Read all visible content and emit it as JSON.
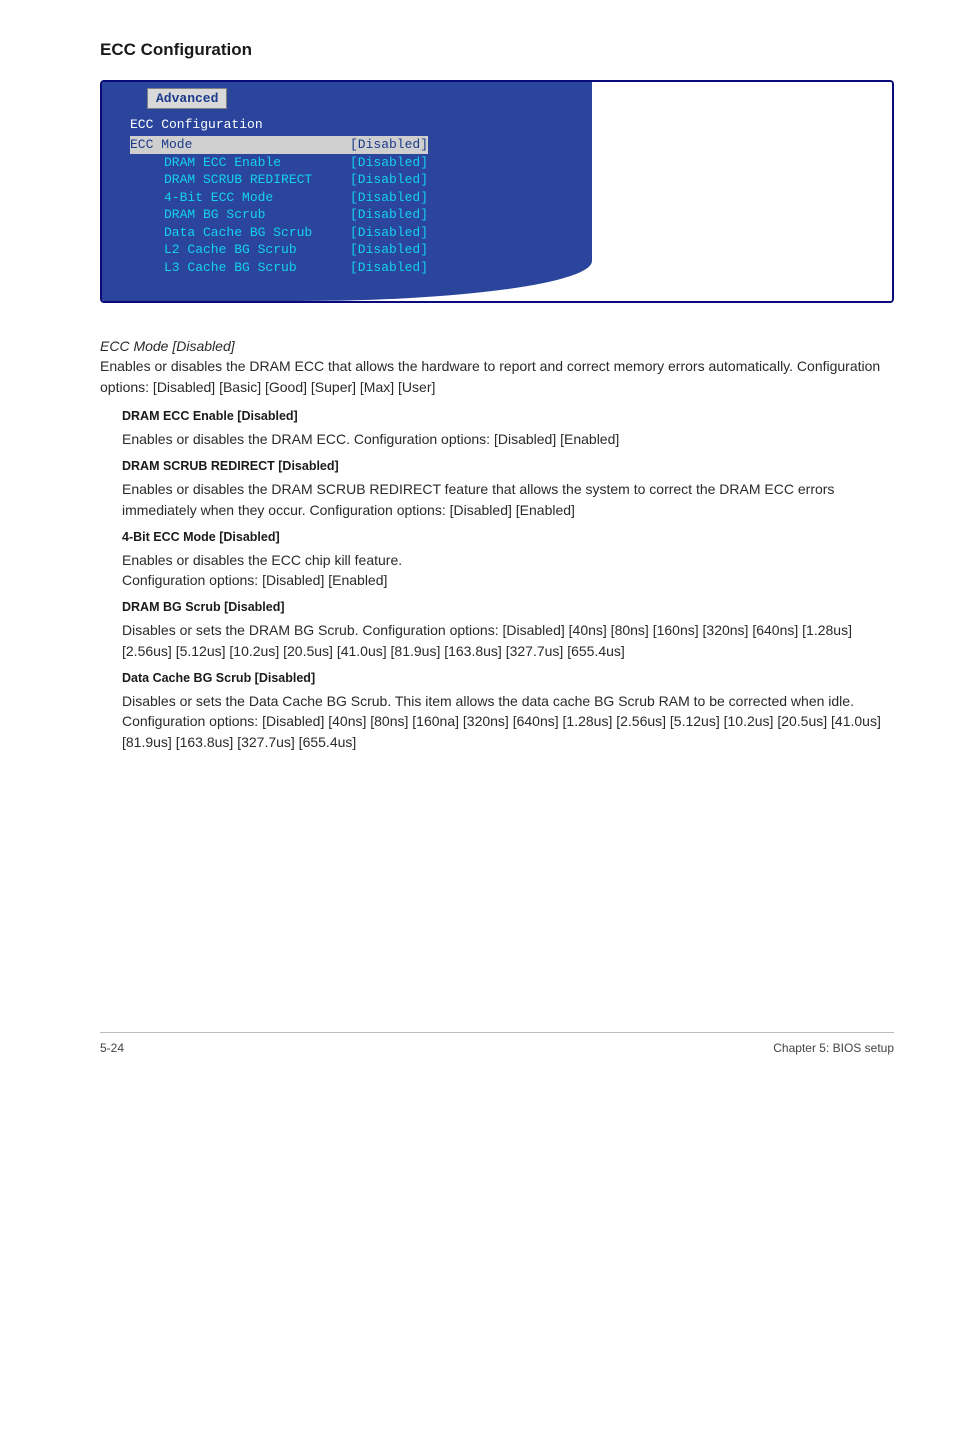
{
  "page": {
    "heading": "ECC Configuration",
    "footer_left": "5-24",
    "footer_right": "Chapter 5: BIOS setup"
  },
  "bios": {
    "tab": "Advanced",
    "title": "ECC Configuration",
    "rows": [
      {
        "label": "ECC Mode",
        "value": "[Disabled]",
        "selected": true,
        "indent": false
      },
      {
        "label": "DRAM ECC Enable",
        "value": "[Disabled]",
        "selected": false,
        "indent": true
      },
      {
        "label": "DRAM SCRUB REDIRECT",
        "value": "[Disabled]",
        "selected": false,
        "indent": true
      },
      {
        "label": "4-Bit ECC Mode",
        "value": "[Disabled]",
        "selected": false,
        "indent": true
      },
      {
        "label": "DRAM BG Scrub",
        "value": "[Disabled]",
        "selected": false,
        "indent": true
      },
      {
        "label": "Data Cache BG Scrub",
        "value": "[Disabled]",
        "selected": false,
        "indent": true
      },
      {
        "label": "L2 Cache BG Scrub",
        "value": "[Disabled]",
        "selected": false,
        "indent": true
      },
      {
        "label": "L3 Cache BG Scrub",
        "value": "[Disabled]",
        "selected": false,
        "indent": true
      }
    ]
  },
  "content": {
    "ecc_mode_head": "ECC Mode [Disabled]",
    "ecc_mode_body": "Enables or disables the DRAM ECC that allows the hardware to report and correct memory errors automatically. Configuration options: [Disabled] [Basic] [Good] [Super] [Max] [User]",
    "sections": [
      {
        "head": "DRAM ECC Enable [Disabled]",
        "body": "Enables or disables the DRAM ECC. Configuration options: [Disabled] [Enabled]"
      },
      {
        "head": "DRAM SCRUB REDIRECT [Disabled]",
        "body": "Enables or disables the DRAM SCRUB REDIRECT feature that allows the system to correct the DRAM ECC errors immediately when they occur. Configuration options: [Disabled] [Enabled]"
      },
      {
        "head": "4-Bit ECC Mode [Disabled]",
        "body": "Enables or disables the ECC chip kill feature.\nConfiguration options: [Disabled] [Enabled]"
      },
      {
        "head": "DRAM BG Scrub [Disabled]",
        "body": "Disables or sets the DRAM BG Scrub. Configuration options: [Disabled] [40ns] [80ns] [160ns] [320ns] [640ns] [1.28us] [2.56us] [5.12us] [10.2us] [20.5us] [41.0us] [81.9us] [163.8us] [327.7us] [655.4us]"
      },
      {
        "head": "Data Cache BG Scrub [Disabled]",
        "body": "Disables or sets the Data Cache BG Scrub. This item allows the data cache BG Scrub RAM to be corrected when idle. Configuration options: [Disabled] [40ns] [80ns] [160na] [320ns] [640ns] [1.28us] [2.56us] [5.12us] [10.2us] [20.5us] [41.0us] [81.9us] [163.8us] [327.7us] [655.4us]"
      }
    ]
  }
}
